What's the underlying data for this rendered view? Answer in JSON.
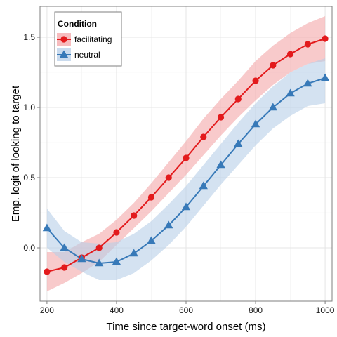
{
  "chart_data": {
    "type": "line",
    "xlabel": "Time since target-word onset (ms)",
    "ylabel": "Emp. logit of looking to target",
    "xlim": [
      180,
      1020
    ],
    "ylim": [
      -0.38,
      1.72
    ],
    "x_ticks": [
      200,
      400,
      600,
      800,
      1000
    ],
    "x_tick_labels": [
      "200",
      "400",
      "600",
      "800",
      "1000"
    ],
    "y_ticks": [
      0.0,
      0.5,
      1.0,
      1.5
    ],
    "y_tick_labels": [
      "0.0",
      "0.5",
      "1.0",
      "1.5"
    ],
    "grid": true,
    "legend": {
      "title": "Condition",
      "position": "top-left"
    },
    "x": [
      200,
      250,
      300,
      350,
      400,
      450,
      500,
      550,
      600,
      650,
      700,
      750,
      800,
      850,
      900,
      950,
      1000
    ],
    "series": [
      {
        "name": "facilitating",
        "color": "#e31a1c",
        "band_color": "#f4a6a8",
        "marker": "circle",
        "values": [
          -0.17,
          -0.14,
          -0.07,
          0.0,
          0.11,
          0.23,
          0.36,
          0.5,
          0.64,
          0.79,
          0.93,
          1.06,
          1.19,
          1.3,
          1.38,
          1.45,
          1.49
        ],
        "lower": [
          -0.31,
          -0.25,
          -0.18,
          -0.1,
          0.02,
          0.14,
          0.26,
          0.39,
          0.52,
          0.66,
          0.8,
          0.93,
          1.05,
          1.16,
          1.25,
          1.31,
          1.33
        ],
        "upper": [
          -0.03,
          -0.03,
          0.04,
          0.1,
          0.2,
          0.32,
          0.46,
          0.61,
          0.76,
          0.92,
          1.06,
          1.19,
          1.33,
          1.44,
          1.53,
          1.6,
          1.65
        ]
      },
      {
        "name": "neutral",
        "color": "#3779b8",
        "band_color": "#b8cfe8",
        "marker": "triangle",
        "values": [
          0.14,
          -0.0,
          -0.08,
          -0.11,
          -0.1,
          -0.04,
          0.05,
          0.16,
          0.29,
          0.44,
          0.59,
          0.74,
          0.88,
          1.0,
          1.1,
          1.17,
          1.21
        ],
        "lower": [
          -0.0,
          -0.1,
          -0.17,
          -0.23,
          -0.23,
          -0.18,
          -0.09,
          0.02,
          0.15,
          0.3,
          0.45,
          0.59,
          0.73,
          0.85,
          0.94,
          1.01,
          1.03
        ],
        "upper": [
          0.28,
          0.12,
          0.04,
          0.03,
          0.04,
          0.1,
          0.19,
          0.31,
          0.44,
          0.59,
          0.74,
          0.89,
          1.03,
          1.15,
          1.25,
          1.31,
          1.35
        ]
      }
    ]
  }
}
